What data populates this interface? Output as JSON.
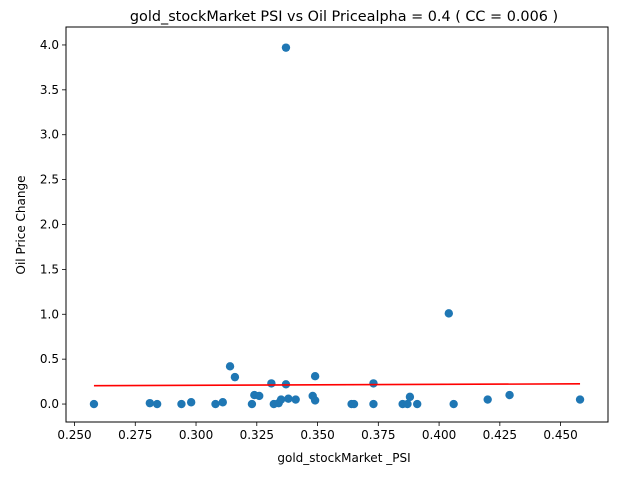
{
  "chart_data": {
    "type": "scatter",
    "title": "gold_stockMarket  PSI vs Oil Pricealpha = 0.4 ( CC = 0.006 )",
    "xlabel": "gold_stockMarket _PSI",
    "ylabel": "Oil Price Change",
    "xlim": [
      0.2465,
      0.4695
    ],
    "ylim": [
      -0.2,
      4.2
    ],
    "xticks": [
      0.25,
      0.275,
      0.3,
      0.325,
      0.35,
      0.375,
      0.4,
      0.425,
      0.45
    ],
    "xtick_labels": [
      "0.250",
      "0.275",
      "0.300",
      "0.325",
      "0.350",
      "0.375",
      "0.400",
      "0.425",
      "0.450"
    ],
    "yticks": [
      0.0,
      0.5,
      1.0,
      1.5,
      2.0,
      2.5,
      3.0,
      3.5,
      4.0
    ],
    "ytick_labels": [
      "0.0",
      "0.5",
      "1.0",
      "1.5",
      "2.0",
      "2.5",
      "3.0",
      "3.5",
      "4.0"
    ],
    "grid": false,
    "point_color": "#1f77b4",
    "line_color": "#ff0000",
    "points": [
      {
        "x": 0.258,
        "y": 0.0
      },
      {
        "x": 0.281,
        "y": 0.01
      },
      {
        "x": 0.284,
        "y": 0.0
      },
      {
        "x": 0.294,
        "y": 0.0
      },
      {
        "x": 0.298,
        "y": 0.02
      },
      {
        "x": 0.308,
        "y": 0.0
      },
      {
        "x": 0.311,
        "y": 0.02
      },
      {
        "x": 0.314,
        "y": 0.42
      },
      {
        "x": 0.316,
        "y": 0.3
      },
      {
        "x": 0.323,
        "y": 0.0
      },
      {
        "x": 0.324,
        "y": 0.1
      },
      {
        "x": 0.326,
        "y": 0.09
      },
      {
        "x": 0.331,
        "y": 0.23
      },
      {
        "x": 0.332,
        "y": 0.0
      },
      {
        "x": 0.334,
        "y": 0.01
      },
      {
        "x": 0.335,
        "y": 0.05
      },
      {
        "x": 0.337,
        "y": 3.97
      },
      {
        "x": 0.337,
        "y": 0.22
      },
      {
        "x": 0.338,
        "y": 0.06
      },
      {
        "x": 0.341,
        "y": 0.05
      },
      {
        "x": 0.348,
        "y": 0.09
      },
      {
        "x": 0.349,
        "y": 0.04
      },
      {
        "x": 0.349,
        "y": 0.31
      },
      {
        "x": 0.364,
        "y": 0.0
      },
      {
        "x": 0.365,
        "y": 0.0
      },
      {
        "x": 0.373,
        "y": 0.23
      },
      {
        "x": 0.373,
        "y": 0.0
      },
      {
        "x": 0.385,
        "y": 0.0
      },
      {
        "x": 0.387,
        "y": 0.0
      },
      {
        "x": 0.388,
        "y": 0.08
      },
      {
        "x": 0.391,
        "y": 0.0
      },
      {
        "x": 0.404,
        "y": 1.01
      },
      {
        "x": 0.406,
        "y": 0.0
      },
      {
        "x": 0.42,
        "y": 0.05
      },
      {
        "x": 0.429,
        "y": 0.1
      },
      {
        "x": 0.458,
        "y": 0.05
      }
    ],
    "fit_line": {
      "x": [
        0.258,
        0.458
      ],
      "y": [
        0.205,
        0.225
      ]
    }
  }
}
